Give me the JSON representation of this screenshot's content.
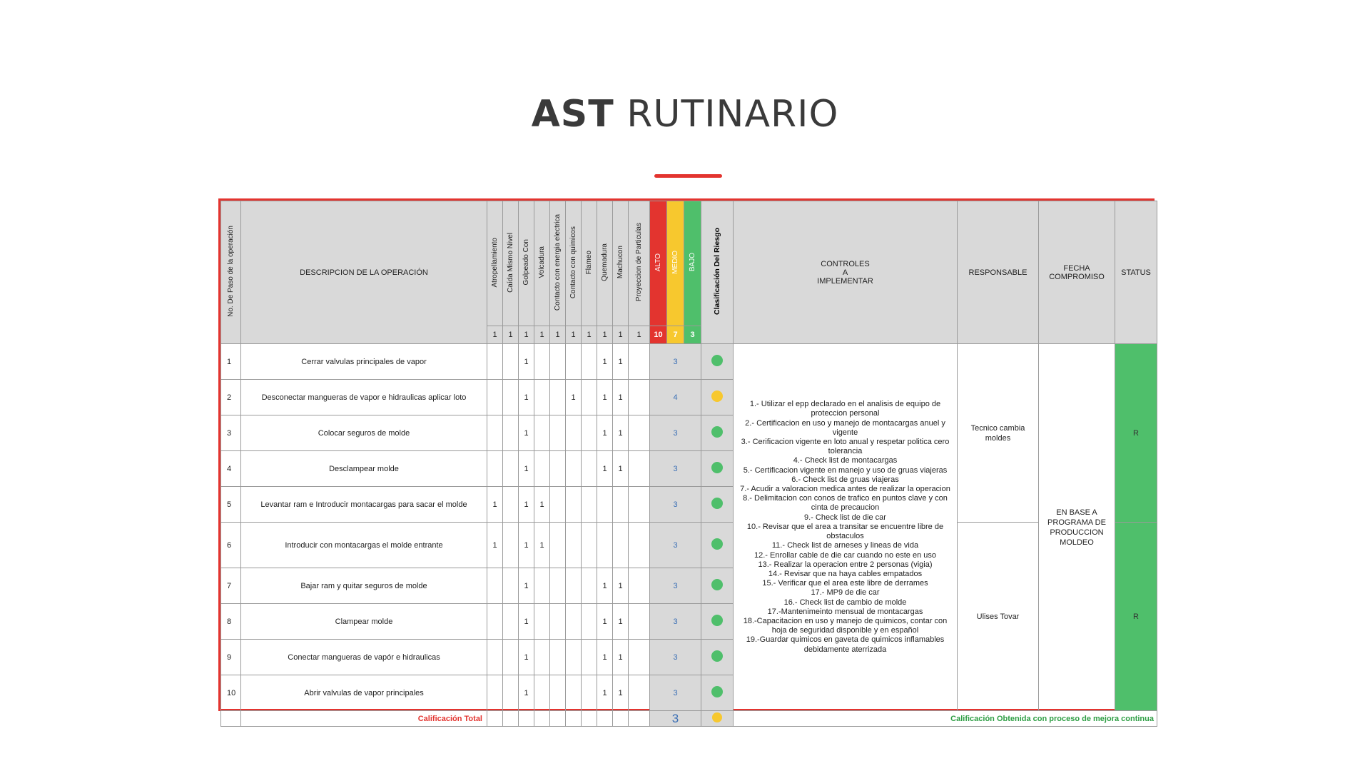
{
  "title": {
    "bold": "AST",
    "light": "RUTINARIO"
  },
  "headers": {
    "step": "No. De Paso de la operación",
    "description": "DESCRIPCION DE LA OPERACIÓN",
    "risks": [
      "Atropellamiento",
      "Caída Mismo Nivel",
      "Golpeado Con",
      "Volcadura",
      "Contacto con energia electrica",
      "Contacto con quimicos",
      "Flameo",
      "Quemadura",
      "Machucon",
      "Proyeccion de Particulas"
    ],
    "risk_weights": [
      "1",
      "1",
      "1",
      "1",
      "1",
      "1",
      "1",
      "1",
      "1",
      "1"
    ],
    "levels": [
      {
        "label": "ALTO",
        "weight": "10",
        "color": "#e3342f"
      },
      {
        "label": "MEDIO",
        "weight": "7",
        "color": "#f7c82e"
      },
      {
        "label": "BAJO",
        "weight": "3",
        "color": "#4fbf6b"
      }
    ],
    "classification": "Clasificación Del Riesgo",
    "controls_l1": "CONTROLES",
    "controls_l2": "A",
    "controls_l3": "IMPLEMENTAR",
    "responsible": "RESPONSABLE",
    "date_l1": "FECHA",
    "date_l2": "COMPROMISO",
    "status": "STATUS"
  },
  "colors": {
    "red": "#e3342f",
    "yellow": "#f7c82e",
    "green": "#4fbf6b",
    "score_blue": "#3a6fb5"
  },
  "rows": [
    {
      "step": "1",
      "description": "Cerrar valvulas principales de vapor",
      "marks": [
        "",
        "",
        "1",
        "",
        "",
        "",
        "",
        "1",
        "1",
        ""
      ],
      "score": "3",
      "risk": "green"
    },
    {
      "step": "2",
      "description": "Desconectar mangueras de vapor e hidraulicas aplicar loto",
      "marks": [
        "",
        "",
        "1",
        "",
        "",
        "1",
        "",
        "1",
        "1",
        ""
      ],
      "score": "4",
      "risk": "yellow"
    },
    {
      "step": "3",
      "description": "Colocar seguros de molde",
      "marks": [
        "",
        "",
        "1",
        "",
        "",
        "",
        "",
        "1",
        "1",
        ""
      ],
      "score": "3",
      "risk": "green"
    },
    {
      "step": "4",
      "description": "Desclampear molde",
      "marks": [
        "",
        "",
        "1",
        "",
        "",
        "",
        "",
        "1",
        "1",
        ""
      ],
      "score": "3",
      "risk": "green"
    },
    {
      "step": "5",
      "description": "Levantar ram e Introducir montacargas para sacar el molde",
      "marks": [
        "1",
        "",
        "1",
        "1",
        "",
        "",
        "",
        "",
        "",
        ""
      ],
      "score": "3",
      "risk": "green"
    },
    {
      "step": "6",
      "description": "Introducir con montacargas el molde entrante",
      "marks": [
        "1",
        "",
        "1",
        "1",
        "",
        "",
        "",
        "",
        "",
        ""
      ],
      "score": "3",
      "risk": "green"
    },
    {
      "step": "7",
      "description": "Bajar ram y quitar seguros de molde",
      "marks": [
        "",
        "",
        "1",
        "",
        "",
        "",
        "",
        "1",
        "1",
        ""
      ],
      "score": "3",
      "risk": "green"
    },
    {
      "step": "8",
      "description": "Clampear molde",
      "marks": [
        "",
        "",
        "1",
        "",
        "",
        "",
        "",
        "1",
        "1",
        ""
      ],
      "score": "3",
      "risk": "green"
    },
    {
      "step": "9",
      "description": "Conectar mangueras de vapór e hidraulicas",
      "marks": [
        "",
        "",
        "1",
        "",
        "",
        "",
        "",
        "1",
        "1",
        ""
      ],
      "score": "3",
      "risk": "green"
    },
    {
      "step": "10",
      "description": "Abrir valvulas de vapor principales",
      "marks": [
        "",
        "",
        "1",
        "",
        "",
        "",
        "",
        "1",
        "1",
        ""
      ],
      "score": "3",
      "risk": "green"
    }
  ],
  "controls": [
    "1.- Utilizar el epp declarado en el analisis de equipo de proteccion personal",
    "2.- Certificacion en uso y manejo de montacargas anuel y vigente",
    "3.- Cerificacion vigente en loto anual y respetar politica cero tolerancia",
    "4.- Check list de montacargas",
    "5.- Certificacion vigente en  manejo y uso de gruas viajeras",
    "6.- Check list de gruas viajeras",
    "7.- Acudir a valoracion medica antes de realizar la operacion",
    "8.- Delimitacion con conos de trafico en puntos clave y con cinta de precaucion",
    "9.- Check list de die car",
    "10.- Revisar que el area a transitar se encuentre libre de obstaculos",
    "11.- Check list de arneses y lineas de vida",
    "12.- Enrollar cable de die car cuando no este en uso",
    "13.- Realizar la operacion entre 2 personas (vigia)",
    "14.- Revisar que na haya cables empatados",
    "15.- Verificar que el area este libre de derrames",
    "17.- MP9 de die car",
    "16.- Check list de cambio de molde",
    "17.-Mantenimeinto mensual de montacargas",
    "18.-Capacitacion en uso y manejo de quimicos, contar con hoja de seguridad disponible y en español",
    "19.-Guardar quimicos en gaveta de quimicos inflamables debidamente aterrizada"
  ],
  "responsible": {
    "first": "Tecnico cambia moldes",
    "second": "Ulises Tovar"
  },
  "commitment_date": "EN BASE A PROGRAMA DE PRODUCCION MOLDEO",
  "status": {
    "first": "R",
    "second": "R"
  },
  "footer": {
    "total_label": "Calificación Total",
    "total_score": "3",
    "total_risk": "yellow",
    "message": "Calificación Obtenida con proceso de mejora continua"
  }
}
